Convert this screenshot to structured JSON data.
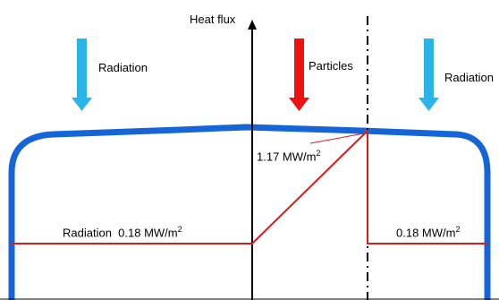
{
  "axis": {
    "label": "Heat flux"
  },
  "arrows": {
    "left": {
      "label": "Radiation",
      "color": "#29b5e8"
    },
    "center": {
      "label": "Particles",
      "color": "#ee1111"
    },
    "right": {
      "label": "Radiation",
      "color": "#29b5e8"
    }
  },
  "annotations": {
    "peak": {
      "value": "1.17 MW/m",
      "exp": "2"
    },
    "left_base": {
      "prefix": "Radiation",
      "value": "0.18 MW/m",
      "exp": "2"
    },
    "right_base": {
      "value": "0.18 MW/m",
      "exp": "2"
    }
  },
  "colors": {
    "outline": "#1565d8",
    "profile": "#dd1a1a",
    "axis": "#000000"
  }
}
